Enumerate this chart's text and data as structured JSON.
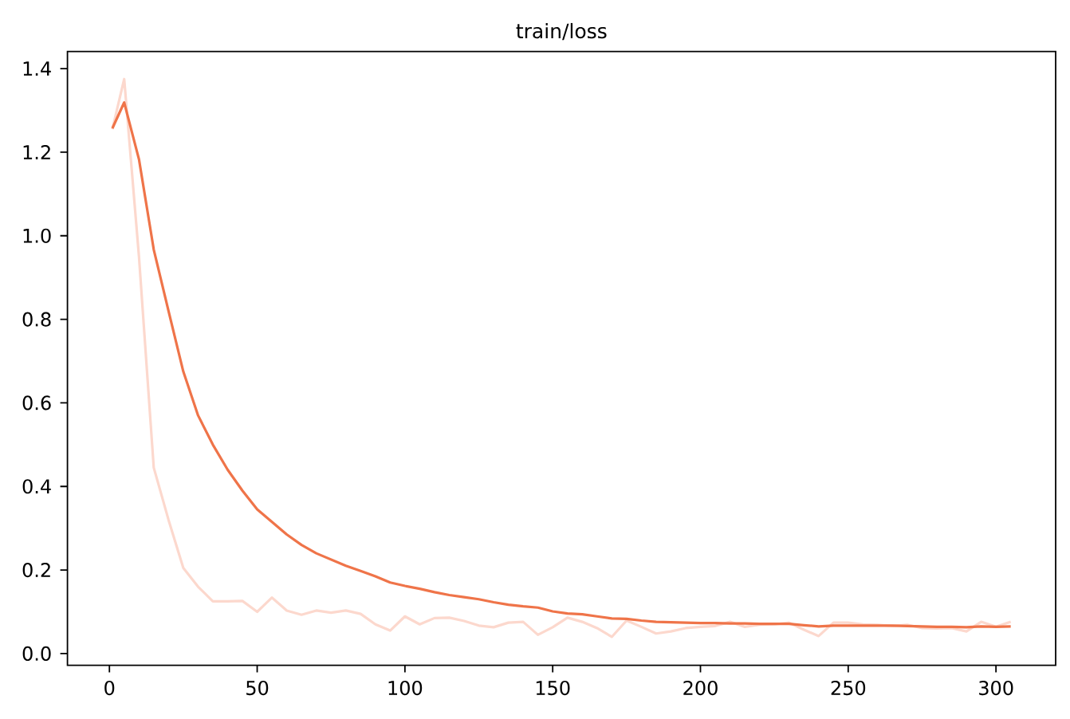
{
  "chart_data": {
    "type": "line",
    "title": "train/loss",
    "x": [
      1,
      5,
      10,
      15,
      20,
      25,
      30,
      35,
      40,
      45,
      50,
      55,
      60,
      65,
      70,
      75,
      80,
      85,
      90,
      95,
      100,
      105,
      110,
      115,
      120,
      125,
      130,
      135,
      140,
      145,
      150,
      155,
      160,
      165,
      170,
      175,
      180,
      185,
      190,
      195,
      200,
      205,
      210,
      215,
      220,
      225,
      230,
      235,
      240,
      245,
      250,
      255,
      260,
      265,
      270,
      275,
      280,
      285,
      290,
      295,
      300,
      305
    ],
    "series": [
      {
        "color": "#fcd8cd",
        "values": [
          1.255,
          1.375,
          0.95,
          0.445,
          0.32,
          0.205,
          0.16,
          0.125,
          0.125,
          0.126,
          0.1,
          0.134,
          0.103,
          0.093,
          0.103,
          0.098,
          0.103,
          0.095,
          0.07,
          0.055,
          0.089,
          0.07,
          0.085,
          0.086,
          0.078,
          0.067,
          0.063,
          0.074,
          0.076,
          0.045,
          0.063,
          0.086,
          0.076,
          0.061,
          0.04,
          0.079,
          0.064,
          0.048,
          0.053,
          0.061,
          0.064,
          0.066,
          0.076,
          0.064,
          0.069,
          0.07,
          0.074,
          0.057,
          0.042,
          0.074,
          0.074,
          0.07,
          0.069,
          0.066,
          0.069,
          0.061,
          0.06,
          0.061,
          0.053,
          0.076,
          0.064,
          0.076
        ]
      },
      {
        "color": "#ef7449",
        "values": [
          1.257,
          1.319,
          1.183,
          0.967,
          0.82,
          0.675,
          0.57,
          0.5,
          0.44,
          0.39,
          0.345,
          0.315,
          0.285,
          0.26,
          0.24,
          0.225,
          0.21,
          0.198,
          0.185,
          0.17,
          0.162,
          0.155,
          0.147,
          0.14,
          0.135,
          0.13,
          0.123,
          0.117,
          0.113,
          0.11,
          0.101,
          0.096,
          0.094,
          0.089,
          0.084,
          0.083,
          0.079,
          0.076,
          0.075,
          0.074,
          0.073,
          0.073,
          0.072,
          0.072,
          0.071,
          0.071,
          0.071,
          0.068,
          0.065,
          0.067,
          0.067,
          0.067,
          0.067,
          0.067,
          0.066,
          0.065,
          0.064,
          0.064,
          0.063,
          0.065,
          0.064,
          0.065
        ]
      }
    ],
    "xlim": [
      -14.2,
      320.2
    ],
    "ylim": [
      -0.028,
      1.441
    ],
    "xticks": [
      0,
      50,
      100,
      150,
      200,
      250,
      300
    ],
    "yticks": [
      {
        "value": 0,
        "label": "0.0"
      },
      {
        "value": 0.2,
        "label": "0.2"
      },
      {
        "value": 0.4,
        "label": "0.4"
      },
      {
        "value": 0.6,
        "label": "0.6"
      },
      {
        "value": 0.8,
        "label": "0.8"
      },
      {
        "value": 1.0,
        "label": "1.0"
      },
      {
        "value": 1.2,
        "label": "1.2"
      },
      {
        "value": 1.4,
        "label": "1.4"
      }
    ]
  }
}
